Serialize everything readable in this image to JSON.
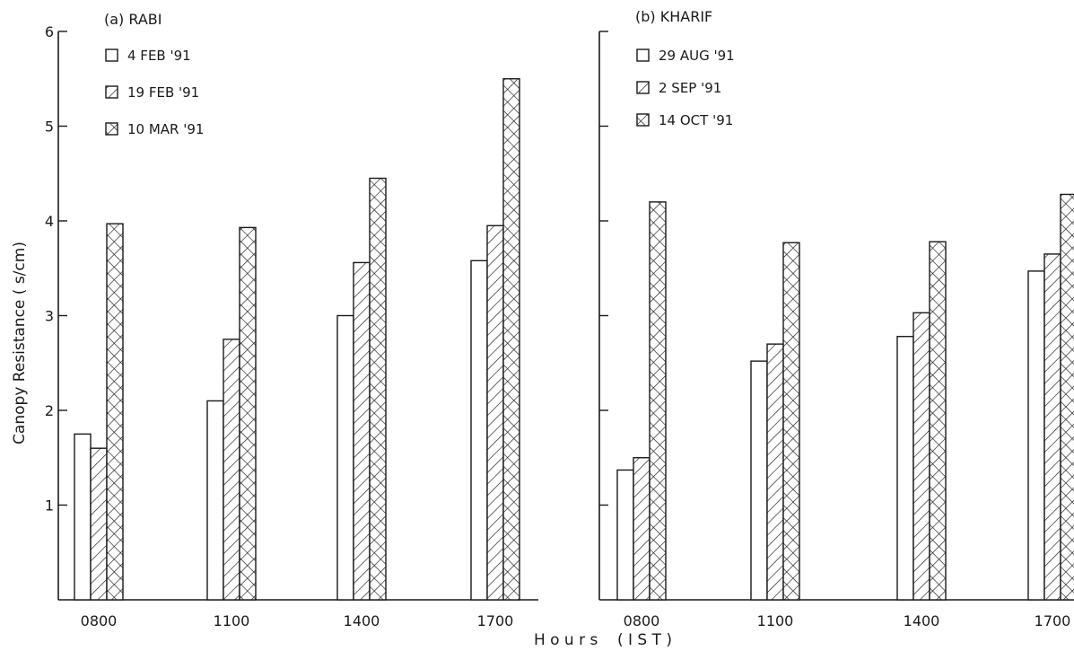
{
  "figure": {
    "ylabel": "Canopy  Resistance  ( s/cm)",
    "xlabel": "H o u r s    ( I S T )"
  },
  "chart_data": [
    {
      "type": "bar",
      "panel_label": "(a)  RABI",
      "categories": [
        "0800",
        "1100",
        "1400",
        "1700"
      ],
      "ylim": [
        0,
        6
      ],
      "yticks": [
        1,
        2,
        3,
        4,
        5,
        6
      ],
      "ylabel": "Canopy  Resistance  ( s/cm)",
      "xlabel": "H o u r s    ( I S T )",
      "grid": false,
      "legend_position": "top-left",
      "series": [
        {
          "name": "4 FEB '91",
          "pattern": "open",
          "values": [
            1.75,
            2.1,
            3.0,
            3.58
          ]
        },
        {
          "name": "19 FEB '91",
          "pattern": "hatched",
          "values": [
            1.6,
            2.75,
            3.56,
            3.95
          ]
        },
        {
          "name": "10 MAR '91",
          "pattern": "cross-hatched",
          "values": [
            3.97,
            3.93,
            4.45,
            5.5
          ]
        }
      ]
    },
    {
      "type": "bar",
      "panel_label": "(b)  KHARIF",
      "categories": [
        "0800",
        "1100",
        "1400",
        "1700"
      ],
      "ylim": [
        0,
        6
      ],
      "grid": false,
      "legend_position": "top-left",
      "series": [
        {
          "name": "29 AUG '91",
          "pattern": "open",
          "values": [
            1.37,
            2.52,
            2.78,
            3.47
          ]
        },
        {
          "name": "2 SEP '91",
          "pattern": "hatched",
          "values": [
            1.5,
            2.7,
            3.03,
            3.65
          ]
        },
        {
          "name": "14 OCT '91",
          "pattern": "cross-hatched",
          "values": [
            4.2,
            3.77,
            3.78,
            4.28
          ]
        }
      ]
    }
  ],
  "colors": {
    "ink": "#1a1a1a",
    "background": "#ffffff"
  }
}
